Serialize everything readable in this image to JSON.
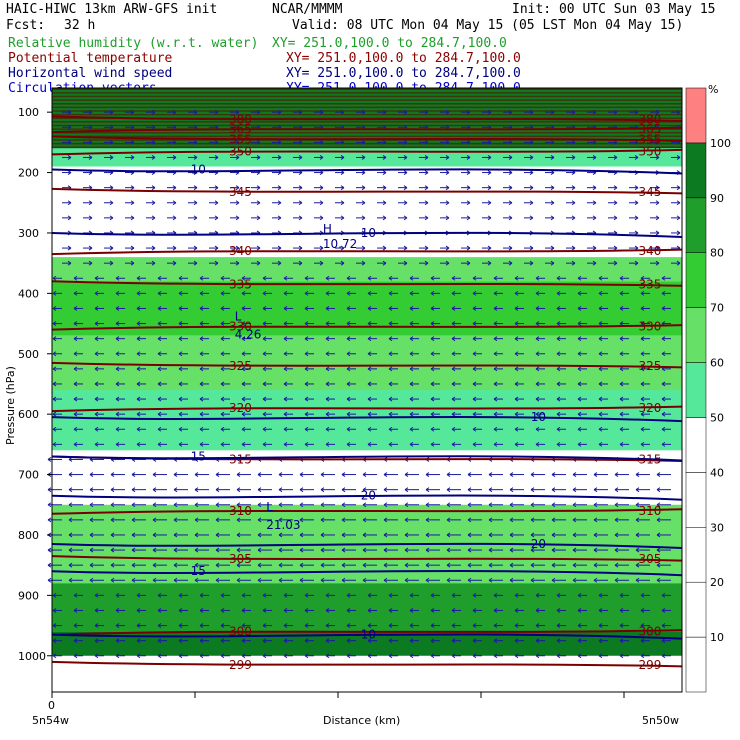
{
  "header": {
    "model": "HAIC-HIWC 13km ARW-GFS init",
    "source": "NCAR/MMMM",
    "init": "Init: 00 UTC Sun 03 May 15",
    "fcst_label": "Fcst:",
    "fcst_value": "32 h",
    "valid": "Valid: 08 UTC Mon 04 May 15 (05 LST Mon 04 May 15)"
  },
  "fields": [
    {
      "name": "Relative humidity (w.r.t. water)",
      "xy": "XY= 251.0,100.0 to 284.7,100.0",
      "color": "#1f9e2c"
    },
    {
      "name": "Potential temperature",
      "xy": "XY= 251.0,100.0 to 284.7,100.0",
      "color": "#8b0000"
    },
    {
      "name": "Horizontal wind speed",
      "xy": "XY= 251.0,100.0 to 284.7,100.0",
      "color": "#000080"
    },
    {
      "name": "Circulation vectors",
      "xy": "XY= 251.0,100.0 to 284.7,100.0",
      "color": "#0000cd"
    }
  ],
  "colorbar": {
    "unit": "%",
    "levels": [
      10,
      20,
      30,
      40,
      50,
      60,
      70,
      80,
      90,
      100
    ],
    "colors": [
      "#ffffff",
      "#ffffff",
      "#ffffff",
      "#ffffff",
      "#ffffff",
      "#55e89a",
      "#66e066",
      "#33cc33",
      "#1f9e2c",
      "#0b7a20",
      "#ff8080"
    ]
  },
  "chart_data": {
    "type": "heatmap",
    "xlabel": "Distance (km)",
    "ylabel": "Pressure (hPa)",
    "x_start_label": "5n54w",
    "x_end_label": "5n50w",
    "x_zero_label": "0",
    "yticks": [
      100,
      200,
      300,
      400,
      500,
      600,
      700,
      800,
      900,
      1000
    ],
    "ylim": [
      1060,
      60
    ],
    "rh_bands": [
      {
        "p": [
          60,
          160
        ],
        "rh": 90
      },
      {
        "p": [
          160,
          190
        ],
        "rh": 55
      },
      {
        "p": [
          190,
          240
        ],
        "rh": 30
      },
      {
        "p": [
          240,
          340
        ],
        "rh": 30
      },
      {
        "p": [
          340,
          380
        ],
        "rh": 65
      },
      {
        "p": [
          380,
          470
        ],
        "rh": 72
      },
      {
        "p": [
          470,
          560
        ],
        "rh": 62
      },
      {
        "p": [
          560,
          660
        ],
        "rh": 55
      },
      {
        "p": [
          660,
          750
        ],
        "rh": 25
      },
      {
        "p": [
          750,
          880
        ],
        "rh": 65
      },
      {
        "p": [
          880,
          960
        ],
        "rh": 85
      },
      {
        "p": [
          960,
          1000
        ],
        "rh": 95
      }
    ],
    "theta_contours": [
      {
        "p": 112,
        "label": "380"
      },
      {
        "p": 128,
        "label": "365"
      },
      {
        "p": 145,
        "label": "355"
      },
      {
        "p": 165,
        "label": "350"
      },
      {
        "p": 232,
        "label": "345"
      },
      {
        "p": 330,
        "label": "340"
      },
      {
        "p": 385,
        "label": "335"
      },
      {
        "p": 455,
        "label": "330"
      },
      {
        "p": 520,
        "label": "325"
      },
      {
        "p": 590,
        "label": "320"
      },
      {
        "p": 675,
        "label": "315"
      },
      {
        "p": 760,
        "label": "310"
      },
      {
        "p": 840,
        "label": "305"
      },
      {
        "p": 960,
        "label": "300"
      },
      {
        "p": 1015,
        "label": "299"
      }
    ],
    "wind_contours": [
      {
        "p": 195,
        "label": "10"
      },
      {
        "p": 300,
        "label": "10"
      },
      {
        "p": 605,
        "label": "10"
      },
      {
        "p": 670,
        "label": "15"
      },
      {
        "p": 735,
        "label": "20"
      },
      {
        "p": 815,
        "label": "20"
      },
      {
        "p": 860,
        "label": "15"
      },
      {
        "p": 965,
        "label": "10"
      }
    ],
    "annotations": [
      {
        "text": "H",
        "p": 300,
        "x": 0.43
      },
      {
        "text": "10.72",
        "p": 325,
        "x": 0.43
      },
      {
        "text": "L",
        "p": 445,
        "x": 0.29
      },
      {
        "text": "4.26",
        "p": 475,
        "x": 0.29
      },
      {
        "text": "L",
        "p": 760,
        "x": 0.34
      },
      {
        "text": "21.03",
        "p": 790,
        "x": 0.34
      }
    ]
  }
}
